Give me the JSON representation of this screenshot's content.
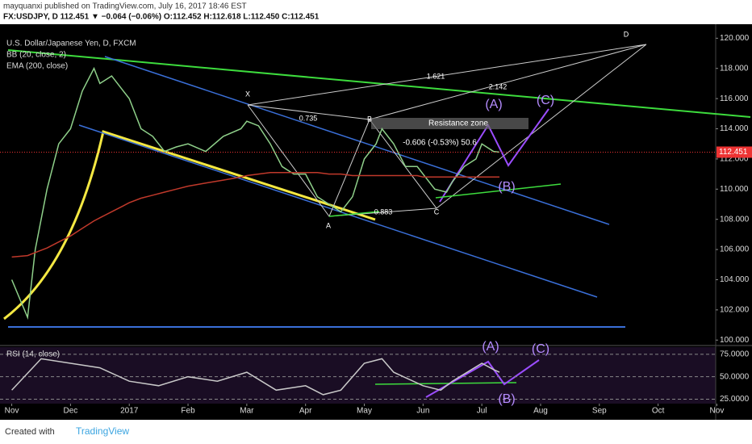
{
  "header": {
    "line1": "mayquanxi published on TradingView.com, July 16, 2017 18:46 EST",
    "line2": "FX:USDJPY, D  112.451 ▼ −0.064 (−0.06%) O:112.452 H:112.618 L:112.450 C:112.451"
  },
  "legend": [
    "U.S. Dollar/Japanese Yen, D, FXCM",
    "BB (20, close, 2)",
    "EMA (200, close)"
  ],
  "annotations": [
    "(A)",
    "(C)",
    "(B)",
    "Resistance zone",
    "-0.606 (-0.53%) 50.6",
    "1.621",
    "2.142",
    "0.735",
    "0.883",
    "X",
    "A",
    "B",
    "C",
    "D",
    "(A)",
    "(C)",
    "(B)"
  ],
  "footer": {
    "created": "Created with",
    "brand": "TradingView"
  },
  "chart_data": [
    {
      "type": "line",
      "x": [
        0,
        0.27,
        0.4,
        0.6,
        0.8,
        1.0,
        1.2,
        1.4,
        1.5,
        1.7,
        1.9,
        2.0,
        2.2,
        2.4,
        2.6,
        2.8,
        3.0,
        3.3,
        3.6,
        3.9,
        4.0,
        4.2,
        4.4,
        4.6,
        4.8,
        5.0,
        5.2,
        5.4,
        5.6,
        5.8,
        6.0,
        6.2,
        6.3,
        6.5,
        6.7,
        6.9,
        7.0,
        7.2,
        7.4,
        7.5,
        7.7,
        7.9,
        8.0,
        8.2,
        8.3
      ],
      "series": [
        {
          "name": "U.S. Dollar/Japanese Yen",
          "color": "#8fd08a",
          "values": [
            104,
            101.5,
            106,
            110,
            113,
            114,
            116.5,
            118,
            117,
            117.5,
            116.5,
            116,
            114,
            113.5,
            112.5,
            112.8,
            113,
            112.5,
            113.5,
            114,
            114.5,
            114.2,
            113,
            111.5,
            111,
            111,
            109.5,
            109,
            108.5,
            109.5,
            112,
            113,
            114,
            113,
            111.5,
            111.5,
            111,
            110,
            109.8,
            110.5,
            111.5,
            112,
            113,
            112.5,
            112.451
          ]
        },
        {
          "name": "EMA (200, close)",
          "color": "#c0392b",
          "values": [
            105.5,
            105.6,
            105.8,
            106.1,
            106.5,
            106.9,
            107.4,
            107.9,
            108.1,
            108.5,
            108.9,
            109.1,
            109.4,
            109.6,
            109.8,
            110,
            110.2,
            110.4,
            110.6,
            110.8,
            110.9,
            111,
            111.1,
            111.1,
            111.1,
            111.1,
            111.1,
            111,
            111,
            110.9,
            110.9,
            110.9,
            110.9,
            110.9,
            110.9,
            110.9,
            110.8,
            110.8,
            110.8,
            110.8,
            110.8,
            110.8,
            110.8,
            110.8,
            110.8
          ]
        }
      ],
      "xlim": [
        -0.2,
        11.98
      ],
      "ylim": [
        99.8,
        120.5
      ],
      "grid": false,
      "yticks": [
        {
          "value": 100,
          "label": "100.000"
        },
        {
          "value": 102,
          "label": "102.000"
        },
        {
          "value": 104,
          "label": "104.000"
        },
        {
          "value": 106,
          "label": "106.000"
        },
        {
          "value": 108,
          "label": "108.000"
        },
        {
          "value": 110,
          "label": "110.000"
        },
        {
          "value": 112,
          "label": "112.000"
        },
        {
          "value": 114,
          "label": "114.000"
        },
        {
          "value": 116,
          "label": "116.000"
        },
        {
          "value": 118,
          "label": "118.000"
        },
        {
          "value": 120,
          "label": "120.000"
        }
      ]
    },
    {
      "type": "line",
      "title": "RSI (14, close)",
      "x": [
        0,
        0.5,
        1.0,
        1.5,
        2,
        2.5,
        3,
        3.5,
        4,
        4.5,
        5,
        5.3,
        5.6,
        6,
        6.3,
        6.5,
        7,
        7.3,
        7.5,
        8,
        8.2,
        8.3
      ],
      "series": [
        {
          "name": "RSI",
          "color": "#c9c9c9",
          "values": [
            35,
            70,
            65,
            60,
            45,
            40,
            50,
            45,
            55,
            35,
            40,
            30,
            35,
            65,
            70,
            55,
            40,
            35,
            45,
            65,
            58,
            55
          ]
        }
      ],
      "xlim": [
        -0.2,
        11.98
      ],
      "ylim": [
        20,
        83
      ],
      "grid": true,
      "yticks": [
        {
          "value": 25,
          "label": "25.0000"
        },
        {
          "value": 50,
          "label": "50.0000"
        },
        {
          "value": 75,
          "label": "75.0000"
        }
      ],
      "xticks": [
        {
          "value": 0,
          "label": "Nov"
        },
        {
          "value": 1,
          "label": "Dec"
        },
        {
          "value": 2,
          "label": "2017"
        },
        {
          "value": 3,
          "label": "Feb"
        },
        {
          "value": 4,
          "label": "Mar"
        },
        {
          "value": 5,
          "label": "Apr"
        },
        {
          "value": 6,
          "label": "May"
        },
        {
          "value": 7,
          "label": "Jun"
        },
        {
          "value": 8,
          "label": "Jul"
        },
        {
          "value": 9,
          "label": "Aug"
        },
        {
          "value": 10,
          "label": "Sep"
        },
        {
          "value": 11,
          "label": "Oct"
        },
        {
          "value": 12,
          "label": "Nov"
        }
      ]
    }
  ]
}
